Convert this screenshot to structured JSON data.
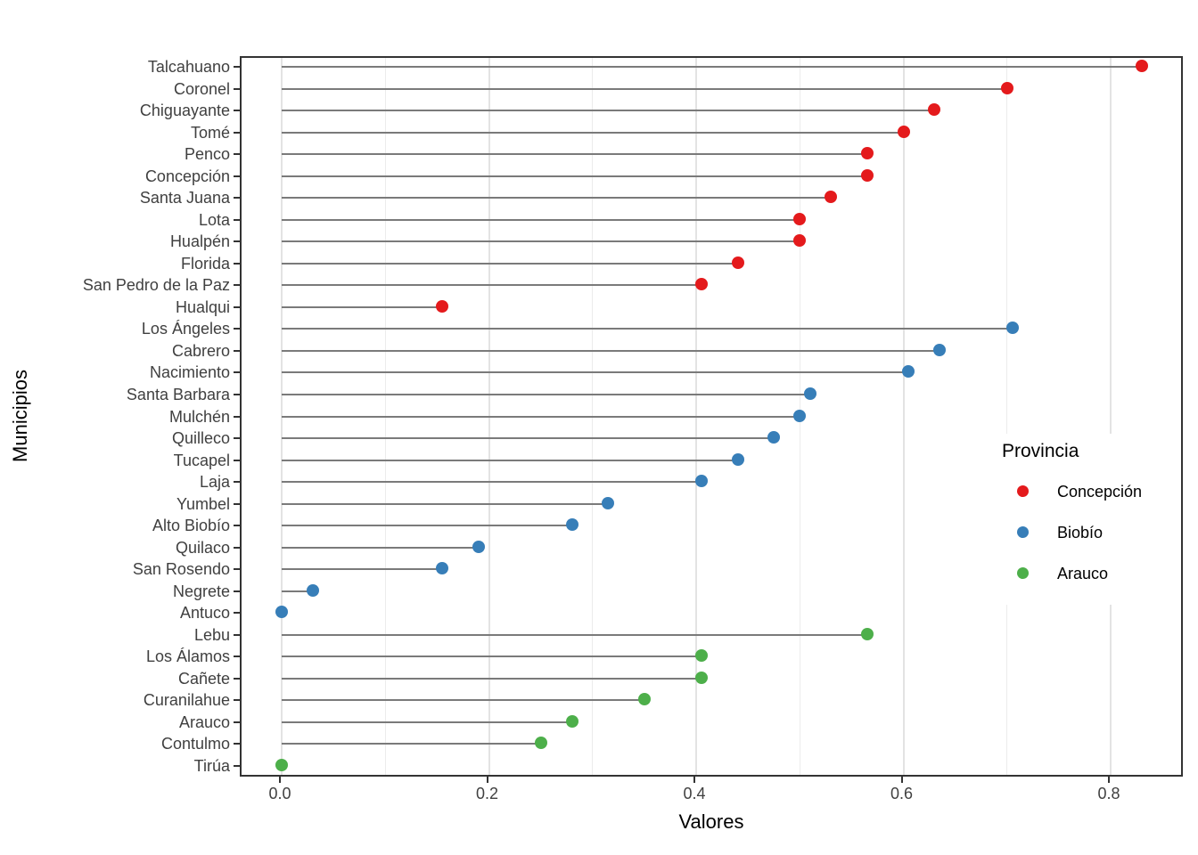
{
  "chart_data": {
    "type": "lollipop",
    "title": "",
    "xlabel": "Valores",
    "ylabel": "Municipios",
    "xlim": [
      -0.04,
      0.87
    ],
    "x_major_ticks": [
      0.0,
      0.2,
      0.4,
      0.6,
      0.8
    ],
    "x_tick_labels": [
      "0.0",
      "0.2",
      "0.4",
      "0.6",
      "0.8"
    ],
    "x_minor_ticks": [
      0.1,
      0.3,
      0.5,
      0.7
    ],
    "grid": "vertical-only",
    "legend": {
      "title": "Provincia",
      "position": "inside-right",
      "items": [
        {
          "label": "Concepción",
          "color": "#E41A1C"
        },
        {
          "label": "Biobío",
          "color": "#377EB8"
        },
        {
          "label": "Arauco",
          "color": "#4DAF4A"
        }
      ]
    },
    "series_colors": {
      "Concepción": "#E41A1C",
      "Biobío": "#377EB8",
      "Arauco": "#4DAF4A"
    },
    "points": [
      {
        "label": "Talcahuano",
        "province": "Concepción",
        "value": 0.83
      },
      {
        "label": "Coronel",
        "province": "Concepción",
        "value": 0.7
      },
      {
        "label": "Chiguayante",
        "province": "Concepción",
        "value": 0.63
      },
      {
        "label": "Tomé",
        "province": "Concepción",
        "value": 0.6
      },
      {
        "label": "Penco",
        "province": "Concepción",
        "value": 0.565
      },
      {
        "label": "Concepción",
        "province": "Concepción",
        "value": 0.565
      },
      {
        "label": "Santa Juana",
        "province": "Concepción",
        "value": 0.53
      },
      {
        "label": "Lota",
        "province": "Concepción",
        "value": 0.5
      },
      {
        "label": "Hualpén",
        "province": "Concepción",
        "value": 0.5
      },
      {
        "label": "Florida",
        "province": "Concepción",
        "value": 0.44
      },
      {
        "label": "San Pedro de la Paz",
        "province": "Concepción",
        "value": 0.405
      },
      {
        "label": "Hualqui",
        "province": "Concepción",
        "value": 0.155
      },
      {
        "label": "Los Ángeles",
        "province": "Biobío",
        "value": 0.705
      },
      {
        "label": "Cabrero",
        "province": "Biobío",
        "value": 0.635
      },
      {
        "label": "Nacimiento",
        "province": "Biobío",
        "value": 0.605
      },
      {
        "label": "Santa Barbara",
        "province": "Biobío",
        "value": 0.51
      },
      {
        "label": "Mulchén",
        "province": "Biobío",
        "value": 0.5
      },
      {
        "label": "Quilleco",
        "province": "Biobío",
        "value": 0.475
      },
      {
        "label": "Tucapel",
        "province": "Biobío",
        "value": 0.44
      },
      {
        "label": "Laja",
        "province": "Biobío",
        "value": 0.405
      },
      {
        "label": "Yumbel",
        "province": "Biobío",
        "value": 0.315
      },
      {
        "label": "Alto Biobío",
        "province": "Biobío",
        "value": 0.28
      },
      {
        "label": "Quilaco",
        "province": "Biobío",
        "value": 0.19
      },
      {
        "label": "San Rosendo",
        "province": "Biobío",
        "value": 0.155
      },
      {
        "label": "Negrete",
        "province": "Biobío",
        "value": 0.03
      },
      {
        "label": "Antuco",
        "province": "Biobío",
        "value": 0.0
      },
      {
        "label": "Lebu",
        "province": "Arauco",
        "value": 0.565
      },
      {
        "label": "Los Álamos",
        "province": "Arauco",
        "value": 0.405
      },
      {
        "label": "Cañete",
        "province": "Arauco",
        "value": 0.405
      },
      {
        "label": "Curanilahue",
        "province": "Arauco",
        "value": 0.35
      },
      {
        "label": "Arauco",
        "province": "Arauco",
        "value": 0.28
      },
      {
        "label": "Contulmo",
        "province": "Arauco",
        "value": 0.25
      },
      {
        "label": "Tirúa",
        "province": "Arauco",
        "value": 0.0
      }
    ]
  },
  "styles": {
    "background": "#FFFFFF",
    "panel_border": "#333333",
    "stem": "#7A7A7A",
    "grid_major": "#E3E3E3",
    "grid_minor": "#ECECEC",
    "tick": "#333333",
    "tick_label_color": "#404040",
    "axis_title_color": "#000000"
  }
}
